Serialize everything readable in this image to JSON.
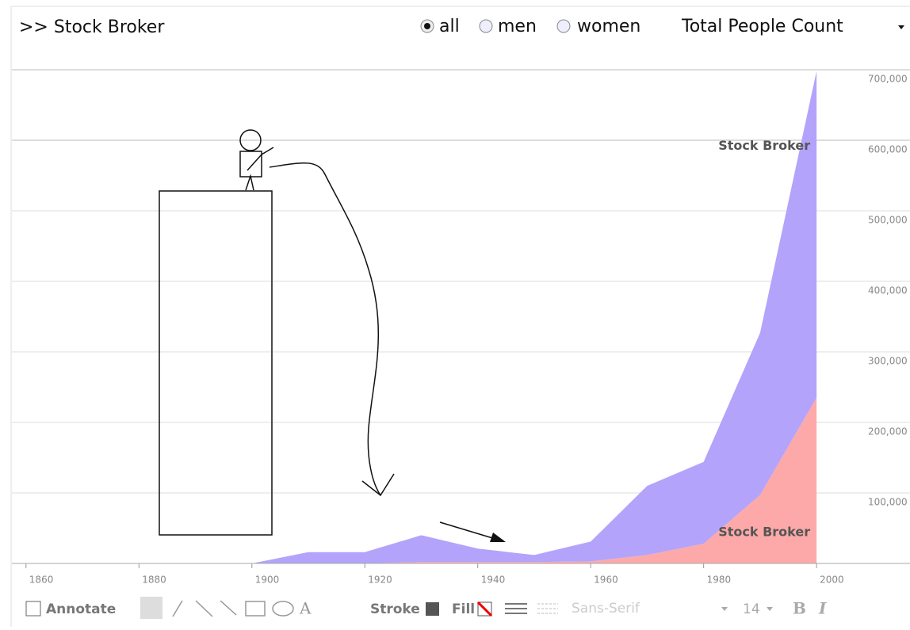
{
  "header": {
    "title": ">> Stock Broker",
    "options": [
      "all",
      "men",
      "women"
    ],
    "measure": "Total People Count"
  },
  "chart_data": {
    "type": "stacked-area",
    "x": [
      1900,
      1910,
      1920,
      1930,
      1940,
      1950,
      1960,
      1970,
      1980,
      1990,
      2000
    ],
    "series": [
      {
        "name": "Stock Broker",
        "color": "#fda9a9",
        "values": [
          0,
          0,
          0,
          2000,
          2000,
          2000,
          3000,
          12000,
          28000,
          97000,
          235000
        ]
      },
      {
        "name": "Stock Broker",
        "color": "#b3a3fb",
        "values": [
          0,
          16000,
          16000,
          38000,
          19000,
          10000,
          28000,
          98000,
          116000,
          230000,
          463000
        ]
      }
    ],
    "xlim": [
      1857.5,
      2007
    ],
    "xticks": [
      1860,
      1880,
      1900,
      1920,
      1940,
      1960,
      1980,
      2000
    ],
    "ylim": [
      0,
      700000
    ],
    "yticks": [
      {
        "value": 100000,
        "label": "100,000"
      },
      {
        "value": 200000,
        "label": "200,000"
      },
      {
        "value": 300000,
        "label": "300,000"
      },
      {
        "value": 400000,
        "label": "400,000"
      },
      {
        "value": 500000,
        "label": "500,000"
      },
      {
        "value": 600000,
        "label": "600,000"
      },
      {
        "value": 700000,
        "label": "700,000"
      }
    ],
    "grid": true
  },
  "toolbar": {
    "annotate": "Annotate",
    "stroke": "Stroke",
    "fill": "Fill",
    "font": "Sans-Serif",
    "size": "14",
    "bold": "B",
    "italic": "I"
  }
}
